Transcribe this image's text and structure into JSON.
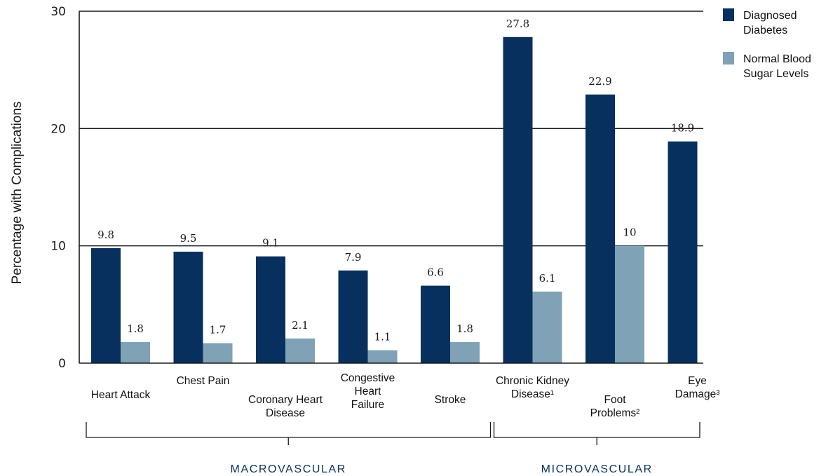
{
  "chart_data": {
    "type": "bar",
    "title": "",
    "ylabel": "Percentage with Complications",
    "ylim": [
      0,
      30
    ],
    "yticks": [
      "0",
      "10",
      "20",
      "30"
    ],
    "grid": true,
    "legend_position": "top-right",
    "categories": [
      [
        "Heart Attack"
      ],
      [
        "Chest Pain"
      ],
      [
        "Coronary Heart",
        "Disease"
      ],
      [
        "Congestive",
        "Heart",
        "Failure"
      ],
      [
        "Stroke"
      ],
      [
        "Chronic Kidney",
        "Disease¹"
      ],
      [
        "Foot",
        "Problems²"
      ],
      [
        "Eye",
        "Damage³"
      ]
    ],
    "series": [
      {
        "name": "Diagnosed Diabetes",
        "legend_lines": [
          "Diagnosed",
          "Diabetes"
        ],
        "color": "#08305e",
        "values": [
          9.8,
          9.5,
          9.1,
          7.9,
          6.6,
          27.8,
          22.9,
          18.9
        ],
        "labels": [
          "9.8",
          "9.5",
          "9.1",
          "7.9",
          "6.6",
          "27.8",
          "22.9",
          "18.9"
        ]
      },
      {
        "name": "Normal Blood Sugar Levels",
        "legend_lines": [
          "Normal Blood",
          "Sugar Levels"
        ],
        "color": "#7fa2b6",
        "values": [
          1.8,
          1.7,
          2.1,
          1.1,
          1.8,
          6.1,
          10,
          null
        ],
        "labels": [
          "1.8",
          "1.7",
          "2.1",
          "1.1",
          "1.8",
          "6.1",
          "10",
          ""
        ]
      }
    ],
    "groups": [
      {
        "label": "MACROVASCULAR",
        "from": 0,
        "to": 4
      },
      {
        "label": "MICROVASCULAR",
        "from": 5,
        "to": 7
      }
    ],
    "group_label_color": "#08305e"
  }
}
